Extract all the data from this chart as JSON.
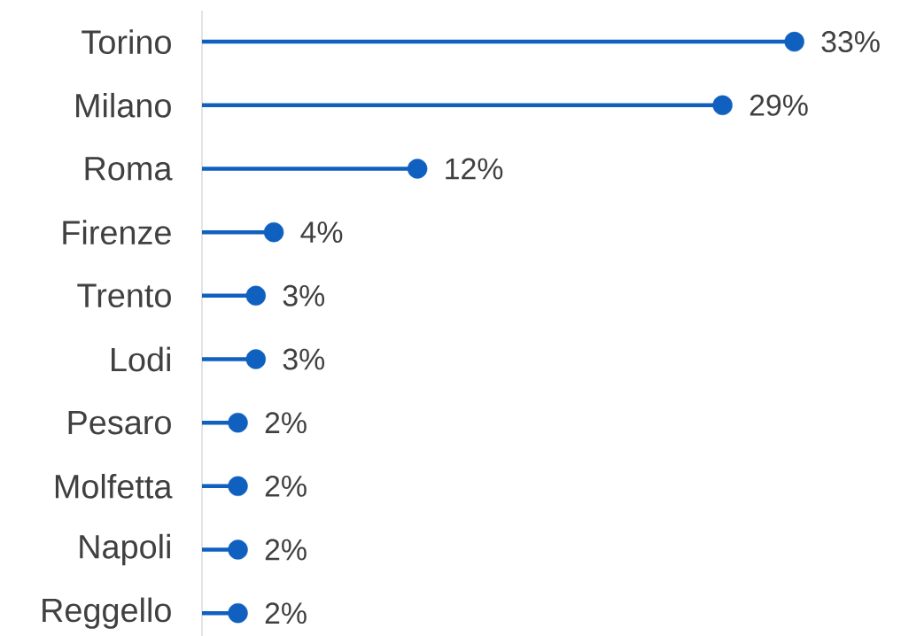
{
  "chart_data": {
    "type": "lollipop",
    "orientation": "horizontal",
    "marker": "circle",
    "color": "#1060c0",
    "categories": [
      "Torino",
      "Milano",
      "Roma",
      "Firenze",
      "Trento",
      "Lodi",
      "Pesaro",
      "Molfetta",
      "Napoli",
      "Reggello"
    ],
    "values": [
      33,
      29,
      12,
      4,
      3,
      3,
      2,
      2,
      2,
      2
    ],
    "value_labels": [
      "33%",
      "29%",
      "12%",
      "4%",
      "3%",
      "3%",
      "2%",
      "2%",
      "2%",
      "2%"
    ]
  }
}
